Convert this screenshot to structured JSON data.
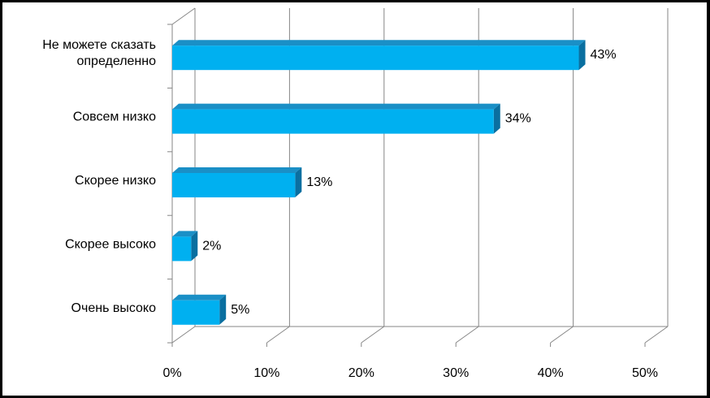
{
  "chart_data": {
    "type": "bar",
    "orientation": "horizontal",
    "three_d": true,
    "categories": [
      [
        "Не можете сказать",
        "определенно"
      ],
      [
        "Совсем низко"
      ],
      [
        "Скорее низко"
      ],
      [
        "Скорее высоко"
      ],
      [
        "Очень высоко"
      ]
    ],
    "values": [
      43,
      34,
      13,
      2,
      5
    ],
    "data_labels": [
      "43%",
      "34%",
      "13%",
      "2%",
      "5%"
    ],
    "xlim": [
      0,
      50
    ],
    "xticks": [
      0,
      10,
      20,
      30,
      40,
      50
    ],
    "xtick_labels": [
      "0%",
      "10%",
      "20%",
      "30%",
      "40%",
      "50%"
    ],
    "grid": true,
    "legend": false,
    "bar_color": "#00b0f0",
    "bar_top_color": "#1a8fc6",
    "bar_side_color": "#0a6fa0",
    "grid_color": "#868686"
  }
}
